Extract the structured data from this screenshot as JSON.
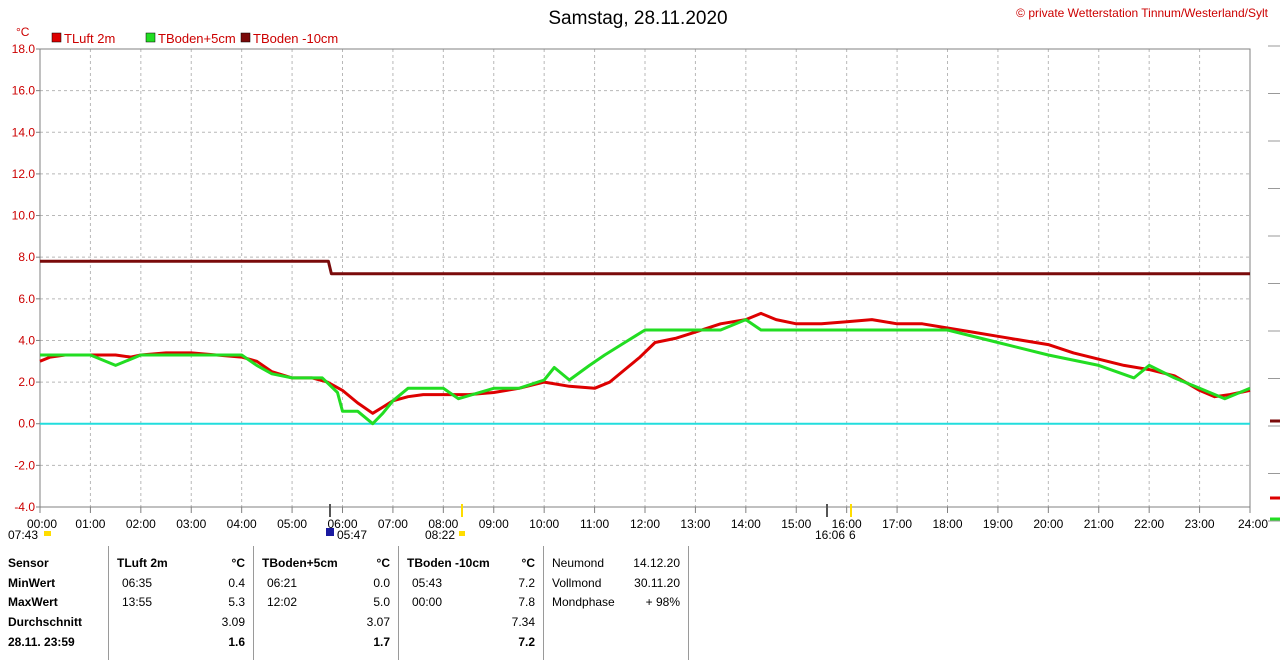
{
  "title": "Samstag, 28.11.2020",
  "copyright": "© private Wetterstation Tinnum/Westerland/Sylt",
  "y_unit": "°C",
  "colors": {
    "tluft": "#dd0000",
    "tboden5": "#22dd22",
    "tboden10": "#7a0a0a",
    "zero": "#22dddd",
    "grid": "#b8b8b8",
    "sun": "#ffdd00"
  },
  "sun": {
    "sunrise": "07:43",
    "sunset": "16:06",
    "moon1": "05:47",
    "moon2": "08:22",
    "moon_icon_label": "6"
  },
  "chart_data": {
    "type": "line",
    "xlim": [
      0,
      24
    ],
    "ylim": [
      -4,
      18
    ],
    "ytick_step": 2,
    "grid": true,
    "legend": "top-left",
    "x_tick_labels": [
      "00:00",
      "01:00",
      "02:00",
      "03:00",
      "04:00",
      "05:00",
      "06:00",
      "07:00",
      "08:00",
      "09:00",
      "10:00",
      "11:00",
      "12:00",
      "13:00",
      "14:00",
      "15:00",
      "16:00",
      "17:00",
      "18:00",
      "19:00",
      "20:00",
      "21:00",
      "22:00",
      "23:00",
      "24:00"
    ],
    "series": [
      {
        "name": "TLuft 2m",
        "color": "#dd0000",
        "x": [
          0,
          0.2,
          0.5,
          1,
          1.5,
          1.8,
          2,
          2.5,
          3,
          3.5,
          4,
          4.3,
          4.6,
          5,
          5.4,
          5.7,
          6,
          6.3,
          6.6,
          6.8,
          7,
          7.3,
          7.6,
          8,
          8.5,
          9,
          9.5,
          10,
          10.5,
          11,
          11.3,
          11.6,
          11.9,
          12.2,
          12.6,
          13,
          13.5,
          14,
          14.3,
          14.6,
          15,
          15.5,
          16,
          16.5,
          17,
          17.5,
          18,
          18.5,
          19,
          19.5,
          20,
          20.5,
          21,
          21.5,
          22,
          22.5,
          23,
          23.3,
          23.6,
          24
        ],
        "y": [
          3.0,
          3.2,
          3.3,
          3.3,
          3.3,
          3.2,
          3.3,
          3.4,
          3.4,
          3.3,
          3.2,
          3.0,
          2.5,
          2.2,
          2.2,
          2.0,
          1.6,
          1.0,
          0.5,
          0.8,
          1.1,
          1.3,
          1.4,
          1.4,
          1.4,
          1.5,
          1.7,
          2.0,
          1.8,
          1.7,
          2.0,
          2.6,
          3.2,
          3.9,
          4.1,
          4.4,
          4.8,
          5.0,
          5.3,
          5.0,
          4.8,
          4.8,
          4.9,
          5.0,
          4.8,
          4.8,
          4.6,
          4.4,
          4.2,
          4.0,
          3.8,
          3.4,
          3.1,
          2.8,
          2.6,
          2.3,
          1.6,
          1.3,
          1.4,
          1.6
        ]
      },
      {
        "name": "TBoden+5cm",
        "color": "#22dd22",
        "x": [
          0,
          1,
          1.5,
          1.9,
          2,
          4,
          4.3,
          4.6,
          5,
          5.6,
          5.9,
          6,
          6.3,
          6.6,
          6.8,
          7,
          7.3,
          8,
          8.3,
          9,
          9.5,
          10,
          10.2,
          10.5,
          10.9,
          11.2,
          11.6,
          12,
          12.4,
          12.8,
          13.5,
          14,
          14.3,
          15,
          16,
          17,
          18,
          19,
          20,
          21,
          21.7,
          22,
          22.5,
          23,
          23.5,
          24
        ],
        "y": [
          3.3,
          3.3,
          2.8,
          3.2,
          3.3,
          3.3,
          2.8,
          2.4,
          2.2,
          2.2,
          1.5,
          0.6,
          0.6,
          0.0,
          0.5,
          1.1,
          1.7,
          1.7,
          1.2,
          1.7,
          1.7,
          2.1,
          2.7,
          2.1,
          2.8,
          3.3,
          3.9,
          4.5,
          4.5,
          4.5,
          4.5,
          5.0,
          4.5,
          4.5,
          4.5,
          4.5,
          4.5,
          3.9,
          3.3,
          2.8,
          2.2,
          2.8,
          2.2,
          1.7,
          1.2,
          1.7
        ]
      },
      {
        "name": "TBoden -10cm",
        "color": "#7a0a0a",
        "x": [
          0,
          5.72,
          5.78,
          24
        ],
        "y": [
          7.8,
          7.8,
          7.2,
          7.2
        ]
      }
    ]
  },
  "stats": {
    "sensor": {
      "header": "Sensor",
      "rows": [
        "MinWert",
        "MaxWert",
        "Durchschnitt",
        "28.11. 23:59"
      ]
    },
    "cols": [
      {
        "header": "TLuft 2m",
        "unit": "°C",
        "min_time": "06:35",
        "min": "0.4",
        "max_time": "13:55",
        "max": "5.3",
        "avg": "3.09",
        "current": "1.6"
      },
      {
        "header": "TBoden+5cm",
        "unit": "°C",
        "min_time": "06:21",
        "min": "0.0",
        "max_time": "12:02",
        "max": "5.0",
        "avg": "3.07",
        "current": "1.7"
      },
      {
        "header": "TBoden -10cm",
        "unit": "°C",
        "min_time": "05:43",
        "min": "7.2",
        "max_time": "00:00",
        "max": "7.8",
        "avg": "7.34",
        "current": "7.2"
      }
    ],
    "moon": {
      "neumond_label": "Neumond",
      "neumond": "14.12.20",
      "vollmond_label": "Vollmond",
      "vollmond": "30.11.20",
      "phase_label": "Mondphase",
      "phase": "+ 98%"
    }
  }
}
